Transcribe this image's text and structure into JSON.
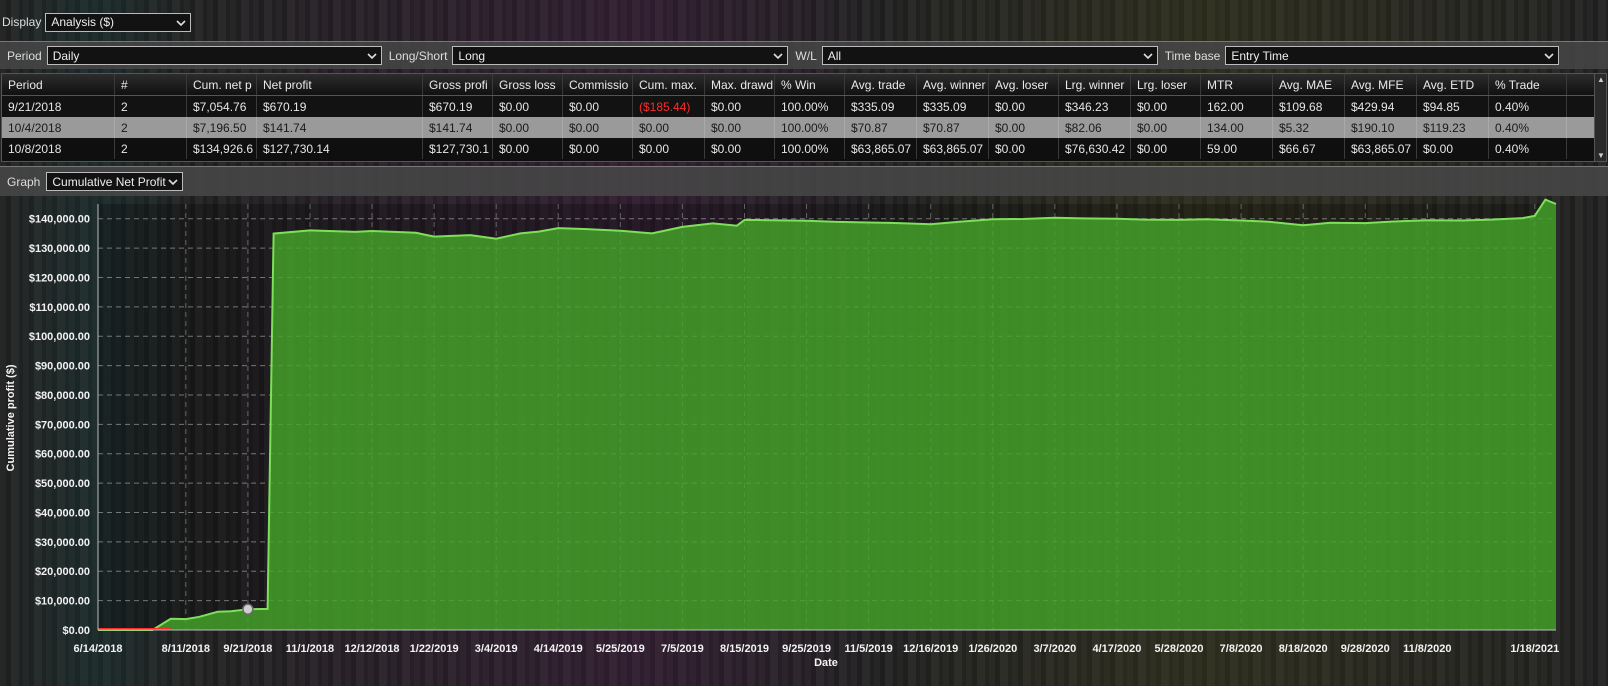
{
  "display": {
    "label": "Display",
    "value": "Analysis ($)"
  },
  "filters": {
    "period": {
      "label": "Period",
      "value": "Daily"
    },
    "long_short": {
      "label": "Long/Short",
      "value": "Long"
    },
    "wl": {
      "label": "W/L",
      "value": "All"
    },
    "time_base": {
      "label": "Time base",
      "value": "Entry Time"
    }
  },
  "table": {
    "columns": [
      "Period",
      "#",
      "Cum. net profit",
      "Net profit",
      "Gross profit",
      "Gross loss",
      "Commission",
      "Cum. max. drawdown",
      "Max. drawdown",
      "% Win",
      "Avg. trade",
      "Avg. winner",
      "Avg. loser",
      "Lrg. winner",
      "Lrg. loser",
      "MTR",
      "Avg. MAE",
      "Avg. MFE",
      "Avg. ETD",
      "% Trade"
    ],
    "column_display": [
      "Period",
      "#",
      "Cum. net p",
      "Net profit",
      "Gross profi",
      "Gross loss",
      "Commissio",
      "Cum. max.",
      "Max. drawd",
      "% Win",
      "Avg. trade",
      "Avg. winner",
      "Avg. loser",
      "Lrg. winner",
      "Lrg. loser",
      "MTR",
      "Avg. MAE",
      "Avg. MFE",
      "Avg. ETD",
      "% Trade"
    ],
    "rows": [
      [
        "9/21/2018",
        "2",
        "$7,054.76",
        "$670.19",
        "$670.19",
        "$0.00",
        "$0.00",
        "($185.44)",
        "$0.00",
        "100.00%",
        "$335.09",
        "$335.09",
        "$0.00",
        "$346.23",
        "$0.00",
        "162.00",
        "$109.68",
        "$429.94",
        "$94.85",
        "0.40%"
      ],
      [
        "10/4/2018",
        "2",
        "$7,196.50",
        "$141.74",
        "$141.74",
        "$0.00",
        "$0.00",
        "$0.00",
        "$0.00",
        "100.00%",
        "$70.87",
        "$70.87",
        "$0.00",
        "$82.06",
        "$0.00",
        "134.00",
        "$5.32",
        "$190.10",
        "$119.23",
        "0.40%"
      ],
      [
        "10/8/2018",
        "2",
        "$134,926.6",
        "$127,730.14",
        "$127,730.1",
        "$0.00",
        "$0.00",
        "$0.00",
        "$0.00",
        "100.00%",
        "$63,865.07",
        "$63,865.07",
        "$0.00",
        "$76,630.42",
        "$0.00",
        "59.00",
        "$66.67",
        "$63,865.07",
        "$0.00",
        "0.40%"
      ]
    ]
  },
  "graph": {
    "label": "Graph",
    "value": "Cumulative Net Profit"
  },
  "colors": {
    "fill": "#46a52a",
    "line": "#7ee05a",
    "negative": "#ff2a2a",
    "grid": "#cfcfcf"
  },
  "chart_data": {
    "type": "area",
    "xlabel": "Date",
    "ylabel": "Cumulative profit ($)",
    "ylim": [
      0,
      145000
    ],
    "yticks": [
      "$0.00",
      "$10,000.00",
      "$20,000.00",
      "$30,000.00",
      "$40,000.00",
      "$50,000.00",
      "$60,000.00",
      "$70,000.00",
      "$80,000.00",
      "$90,000.00",
      "$100,000.00",
      "$110,000.00",
      "$120,000.00",
      "$130,000.00",
      "$140,000.00"
    ],
    "xticks": [
      "6/14/2018",
      "8/11/2018",
      "9/21/2018",
      "11/1/2018",
      "12/12/2018",
      "1/22/2019",
      "3/4/2019",
      "4/14/2019",
      "5/25/2019",
      "7/5/2019",
      "8/15/2019",
      "9/25/2019",
      "11/5/2019",
      "12/16/2019",
      "1/26/2020",
      "3/7/2020",
      "4/17/2020",
      "5/28/2020",
      "7/8/2020",
      "8/18/2020",
      "9/28/2020",
      "11/8/2020",
      "1/18/2021"
    ],
    "grid": true,
    "series": [
      {
        "x": [
          "6/14/2018",
          "7/1/2018",
          "7/10/2018",
          "7/20/2018",
          "8/1/2018",
          "8/11/2018",
          "8/20/2018",
          "9/1/2018",
          "9/10/2018",
          "9/21/2018",
          "10/4/2018",
          "10/8/2018",
          "11/1/2018",
          "12/1/2018",
          "12/12/2018",
          "1/10/2019",
          "1/22/2019",
          "2/15/2019",
          "3/4/2019",
          "3/20/2019",
          "4/1/2019",
          "4/14/2019",
          "5/1/2019",
          "5/25/2019",
          "6/15/2019",
          "7/5/2019",
          "7/25/2019",
          "8/10/2019",
          "8/15/2019",
          "9/1/2019",
          "9/25/2019",
          "10/15/2019",
          "11/5/2019",
          "11/25/2019",
          "12/16/2019",
          "1/5/2020",
          "1/26/2020",
          "2/15/2020",
          "3/7/2020",
          "3/25/2020",
          "4/17/2020",
          "5/5/2020",
          "5/28/2020",
          "6/15/2020",
          "7/8/2020",
          "7/25/2020",
          "8/18/2020",
          "9/5/2020",
          "9/28/2020",
          "10/15/2020",
          "11/8/2020",
          "12/1/2020",
          "12/20/2020",
          "1/10/2021",
          "1/18/2021",
          "1/25/2021",
          "2/1/2021"
        ],
        "y": [
          0,
          -200,
          -400,
          -300,
          3800,
          3700,
          4500,
          6200,
          6400,
          7055,
          7197,
          134927,
          136000,
          135500,
          135800,
          135200,
          133900,
          134400,
          133200,
          135000,
          135600,
          136800,
          136500,
          135900,
          135000,
          137200,
          138400,
          137600,
          139600,
          139500,
          139300,
          138900,
          138700,
          138500,
          138100,
          139000,
          139800,
          139900,
          140300,
          140100,
          140000,
          139700,
          139600,
          139800,
          139400,
          139000,
          137800,
          138600,
          138500,
          139000,
          139500,
          139400,
          139700,
          140200,
          141000,
          146500,
          145000
        ]
      }
    ]
  }
}
